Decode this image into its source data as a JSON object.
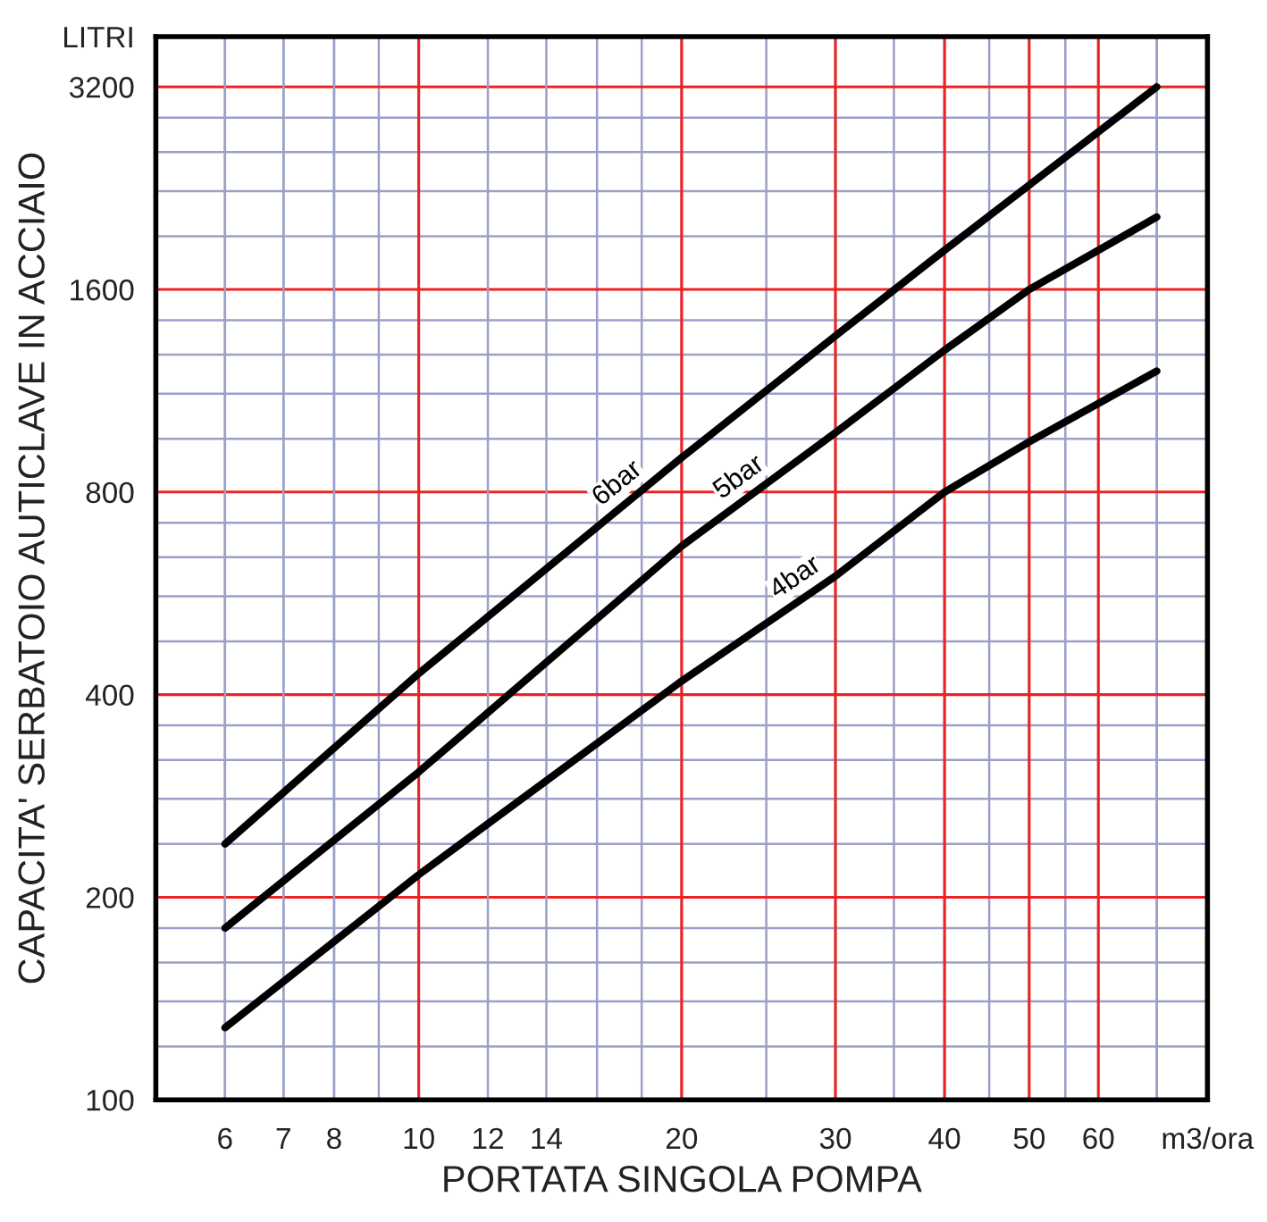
{
  "chart_data": {
    "type": "line",
    "xlabel": "PORTATA SINGOLA POMPA",
    "ylabel": "CAPACITA' SERBATOIO AUTICLAVE IN ACCIAIO",
    "log": "xy",
    "xlim": [
      5,
      80
    ],
    "ylim": [
      100,
      3800
    ],
    "xticks": [
      6,
      7,
      8,
      10,
      12,
      14,
      20,
      30,
      40,
      50,
      60,
      {
        "value": 80,
        "label": "m3/ora"
      }
    ],
    "yticks": [
      100,
      200,
      400,
      800,
      1600,
      3200,
      {
        "value": 3800,
        "label": "LITRI"
      }
    ],
    "grid": true,
    "legend": false,
    "marker": "none",
    "line_style": "solid",
    "series": [
      {
        "name": "6bar",
        "color": "#000000",
        "x": [
          6,
          10,
          20,
          30,
          40,
          70
        ],
        "values": [
          240,
          430,
          900,
          1365,
          1830,
          3200
        ]
      },
      {
        "name": "5bar",
        "color": "#000000",
        "x": [
          6,
          10,
          20,
          30,
          40,
          50,
          70
        ],
        "values": [
          180,
          307,
          665,
          980,
          1300,
          1600,
          2050
        ]
      },
      {
        "name": "4bar",
        "color": "#000000",
        "x": [
          6,
          10,
          20,
          30,
          40,
          50,
          70
        ],
        "values": [
          128,
          216,
          419,
          600,
          800,
          950,
          1210
        ]
      }
    ]
  }
}
